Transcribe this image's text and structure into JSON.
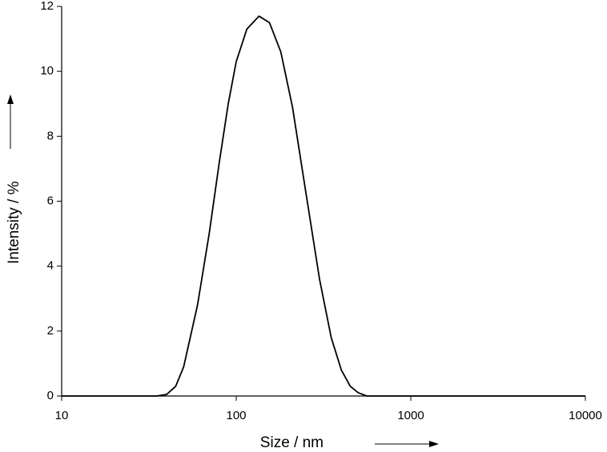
{
  "chart_data": {
    "type": "line",
    "x_label": "Size / nm",
    "y_label": "Intensity / %",
    "x": [
      10,
      30,
      35,
      40,
      45,
      50,
      60,
      70,
      80,
      90,
      100,
      115,
      135,
      155,
      180,
      210,
      250,
      300,
      350,
      400,
      450,
      500,
      560,
      10000
    ],
    "series": [
      {
        "color": "#000000",
        "values": [
          0,
          0,
          0,
          0.05,
          0.3,
          0.9,
          2.8,
          5.0,
          7.2,
          9.0,
          10.3,
          11.3,
          11.7,
          11.5,
          10.6,
          8.9,
          6.3,
          3.6,
          1.8,
          0.8,
          0.3,
          0.1,
          0,
          0
        ]
      }
    ],
    "xlim": [
      10,
      10000
    ],
    "xticks": [
      10,
      100,
      1000,
      10000
    ],
    "xscale": "log",
    "ylim": [
      0,
      12
    ],
    "yticks": [
      0,
      2,
      4,
      6,
      8,
      10,
      12
    ],
    "grid": false
  }
}
